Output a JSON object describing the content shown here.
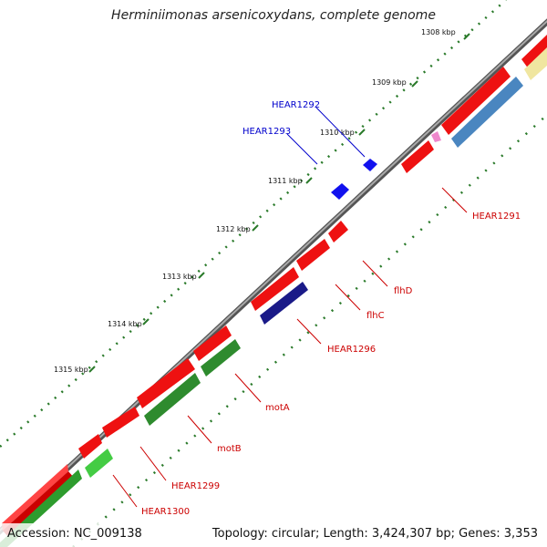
{
  "title": "Herminiimonas arsenicoxydans, complete genome",
  "footer": {
    "accession": "Accession: NC_009138",
    "topology": "Topology: circular; Length: 3,424,307 bp; Genes: 3,353"
  },
  "kbp_ticks": [
    {
      "label": "1308 kbp"
    },
    {
      "label": "1309 kbp"
    },
    {
      "label": "1310 kbp"
    },
    {
      "label": "1311 kbp"
    },
    {
      "label": "1312 kbp"
    },
    {
      "label": "1313 kbp"
    },
    {
      "label": "1314 kbp"
    },
    {
      "label": "1315 kbp"
    }
  ],
  "gene_labels": [
    {
      "text": "HEAR1292",
      "color": "#0000cc"
    },
    {
      "text": "HEAR1293",
      "color": "#0000cc"
    },
    {
      "text": "HEAR1291",
      "color": "#cc0000"
    },
    {
      "text": "flhD",
      "color": "#cc0000"
    },
    {
      "text": "flhC",
      "color": "#cc0000"
    },
    {
      "text": "HEAR1296",
      "color": "#cc0000"
    },
    {
      "text": "motA",
      "color": "#cc0000"
    },
    {
      "text": "motB",
      "color": "#cc0000"
    },
    {
      "text": "HEAR1299",
      "color": "#cc0000"
    },
    {
      "text": "HEAR1300",
      "color": "#cc0000"
    }
  ],
  "colors": {
    "backbone": "#8a8a8a",
    "cds": "#ee1111",
    "flagella_green": "#2e8b2e",
    "light_green": "#44cc44",
    "steel_blue": "#4a86c0",
    "navy": "#1a1a88",
    "pale_yellow": "#f0e6a0",
    "pink": "#ee88cc",
    "blue_arrow": "#1111ee",
    "tick_green": "#2a7a2a"
  }
}
